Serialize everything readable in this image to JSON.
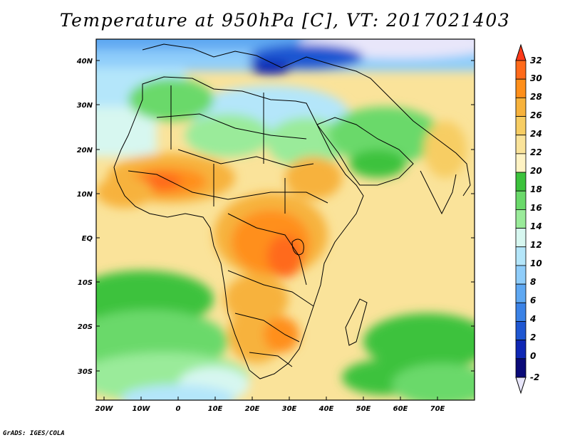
{
  "title": "Temperature at 950hPa [C], VT: 2017021403",
  "credit": "GrADS: IGES/COLA",
  "axes": {
    "lat_ticks": [
      "40N",
      "30N",
      "20N",
      "10N",
      "EQ",
      "10S",
      "20S",
      "30S"
    ],
    "lon_ticks": [
      "20W",
      "10W",
      "0",
      "10E",
      "20E",
      "30E",
      "40E",
      "50E",
      "60E",
      "70E"
    ]
  },
  "colorbar": {
    "labels": [
      "32",
      "30",
      "28",
      "26",
      "24",
      "22",
      "20",
      "18",
      "16",
      "14",
      "12",
      "10",
      "8",
      "6",
      "4",
      "2",
      "0",
      "-2"
    ],
    "colors": [
      "#ff3a1a",
      "#ff6a1a",
      "#ff8f1a",
      "#f7b23c",
      "#f7cd63",
      "#fae39a",
      "#fff3c4",
      "#3cc23c",
      "#6ad96a",
      "#9aeb9a",
      "#d7f7f0",
      "#b4e6fa",
      "#8fcdfa",
      "#5fa8f2",
      "#3b82e6",
      "#1f57d2",
      "#0f27b4",
      "#0a0a78",
      "#e8e6fa"
    ]
  },
  "map": {
    "region": "Africa and surrounding seas",
    "lat_range": [
      -36,
      45
    ],
    "lon_range": [
      -22,
      80
    ]
  }
}
